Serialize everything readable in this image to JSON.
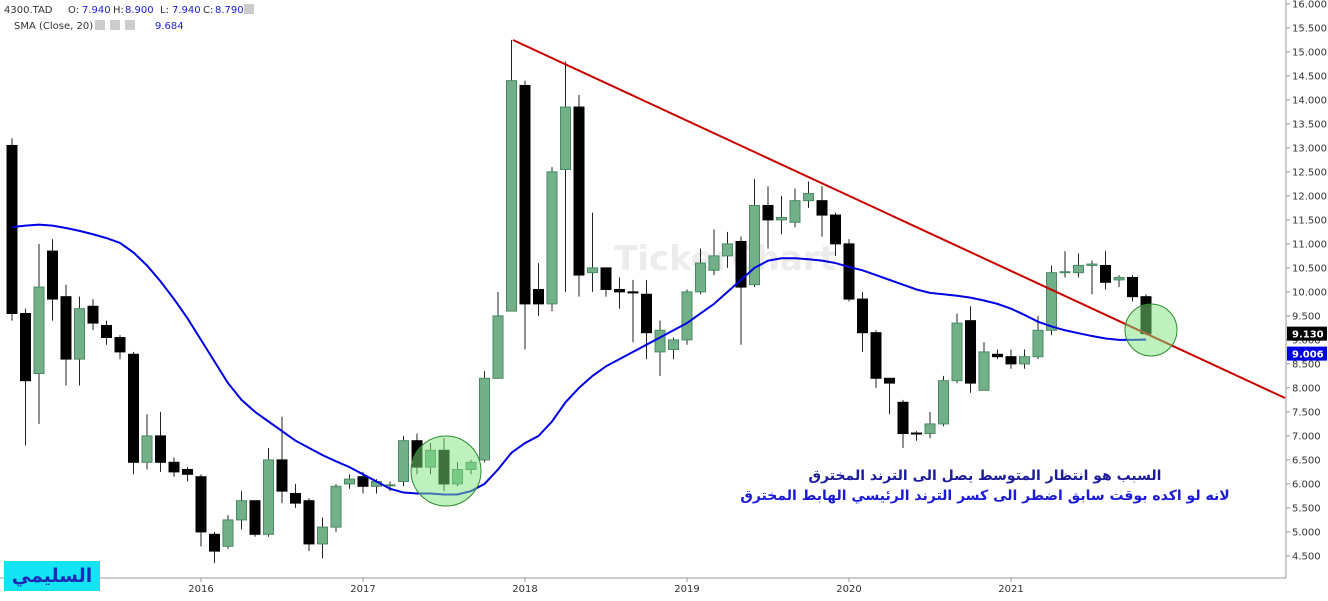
{
  "header": {
    "symbol": "4300.TAD",
    "ohlc": [
      [
        "O:",
        "7.940"
      ],
      [
        "H:",
        "8.900"
      ],
      [
        "L:",
        "7.940"
      ],
      [
        "C:",
        "8.790"
      ]
    ],
    "sma_name": "SMA (Close, 20)",
    "sma_value": "9.684"
  },
  "watermark": "TickerChart",
  "annotation": [
    "السبب هو انتظار المتوسط يصل الى الترند المخترق",
    "لانه لو اكده بوقت سابق اضطر الى كسر الترند الرئيسي الهابط المخترق"
  ],
  "signature": "السليمي",
  "chart_data": {
    "type": "candlestick",
    "categories": [
      null,
      null,
      null,
      null,
      null,
      null,
      null,
      null,
      null,
      null,
      null,
      null,
      null,
      null,
      "2016",
      null,
      null,
      null,
      null,
      null,
      null,
      null,
      null,
      null,
      null,
      null,
      "2017",
      null,
      null,
      null,
      null,
      null,
      null,
      null,
      null,
      null,
      null,
      null,
      "2018",
      null,
      null,
      null,
      null,
      null,
      null,
      null,
      null,
      null,
      null,
      null,
      "2019",
      null,
      null,
      null,
      null,
      null,
      null,
      null,
      null,
      null,
      null,
      null,
      "2020",
      null,
      null,
      null,
      null,
      null,
      null,
      null,
      null,
      null,
      null,
      null,
      "2021",
      null,
      null,
      null,
      null,
      null,
      null,
      null,
      null,
      null,
      null
    ],
    "ylim": [
      4.04,
      16.08
    ],
    "yticks": [
      {
        "value": 4.5,
        "label": "4.500"
      },
      {
        "value": 5,
        "label": "5.000"
      },
      {
        "value": 5.5,
        "label": "5.500"
      },
      {
        "value": 6,
        "label": "6.000"
      },
      {
        "value": 6.5,
        "label": "6.500"
      },
      {
        "value": 7,
        "label": "7.000"
      },
      {
        "value": 7.5,
        "label": "7.500"
      },
      {
        "value": 8,
        "label": "8.000"
      },
      {
        "value": 8.5,
        "label": "8.500"
      },
      {
        "value": 9,
        "label": "9.000"
      },
      {
        "value": 9.5,
        "label": "9.500"
      },
      {
        "value": 10,
        "label": "10.000"
      },
      {
        "value": 10.5,
        "label": "10.500"
      },
      {
        "value": 11,
        "label": "11.000"
      },
      {
        "value": 11.5,
        "label": "11.500"
      },
      {
        "value": 12,
        "label": "12.000"
      },
      {
        "value": 12.5,
        "label": "12.500"
      },
      {
        "value": 13,
        "label": "13.000"
      },
      {
        "value": 13.5,
        "label": "13.500"
      },
      {
        "value": 14,
        "label": "14.000"
      },
      {
        "value": 14.5,
        "label": "14.500"
      },
      {
        "value": 15,
        "label": "15.000"
      },
      {
        "value": 15.5,
        "label": "15.500"
      },
      {
        "value": 16,
        "label": "16.000"
      }
    ],
    "series": [
      {
        "name": "4300.TAD",
        "up_color": "#72b08a",
        "down_color": "#000000",
        "last_label": "9.130",
        "open": [
          13.05,
          9.55,
          8.3,
          10.85,
          9.9,
          8.6,
          9.7,
          9.3,
          9.05,
          8.7,
          6.45,
          7.0,
          6.45,
          6.3,
          6.15,
          4.95,
          4.7,
          5.25,
          5.65,
          4.95,
          6.5,
          5.8,
          5.65,
          4.75,
          5.1,
          6.0,
          6.15,
          5.95,
          5.97,
          6.05,
          6.9,
          6.35,
          6.7,
          6.0,
          6.3,
          6.5,
          8.2,
          9.6,
          14.3,
          10.05,
          9.75,
          12.55,
          13.85,
          10.4,
          10.5,
          10.05,
          10.0,
          9.95,
          8.75,
          8.8,
          9.0,
          10.0,
          10.45,
          10.75,
          11.05,
          10.15,
          11.8,
          11.5,
          11.45,
          11.9,
          11.9,
          11.6,
          11.0,
          9.85,
          9.15,
          8.2,
          7.7,
          7.06,
          7.05,
          7.25,
          8.15,
          9.4,
          7.95,
          8.7,
          8.65,
          8.5,
          8.65,
          9.2,
          10.4,
          10.4,
          10.55,
          10.55,
          10.25,
          10.3,
          9.9
        ],
        "high": [
          13.2,
          9.65,
          11.0,
          11.1,
          10.15,
          9.9,
          9.85,
          9.4,
          9.1,
          8.75,
          7.45,
          7.5,
          6.55,
          6.35,
          6.2,
          5.0,
          5.35,
          5.85,
          5.65,
          6.75,
          7.4,
          6.0,
          5.7,
          5.3,
          6.0,
          6.2,
          6.25,
          6.1,
          6.05,
          7.0,
          7.05,
          6.85,
          6.95,
          6.45,
          6.5,
          8.35,
          10.0,
          15.25,
          14.4,
          10.6,
          12.6,
          14.8,
          14.1,
          11.65,
          10.5,
          10.3,
          10.25,
          10.25,
          9.4,
          9.05,
          10.05,
          10.9,
          11.3,
          11.25,
          11.15,
          12.35,
          12.2,
          12.0,
          12.15,
          12.3,
          12.2,
          11.65,
          11.1,
          10.0,
          9.2,
          8.2,
          7.75,
          7.1,
          7.5,
          8.25,
          9.55,
          9.7,
          8.95,
          8.8,
          8.8,
          8.8,
          9.5,
          10.55,
          10.85,
          10.8,
          10.65,
          10.85,
          10.35,
          10.35,
          9.95
        ],
        "low": [
          9.4,
          6.8,
          7.25,
          9.4,
          8.05,
          8.05,
          9.2,
          8.9,
          8.6,
          6.2,
          6.3,
          6.25,
          6.15,
          6.05,
          4.7,
          4.35,
          4.65,
          5.05,
          4.9,
          4.9,
          5.6,
          5.5,
          4.6,
          4.45,
          5.0,
          5.9,
          5.8,
          5.8,
          5.85,
          5.95,
          6.2,
          6.2,
          5.85,
          5.95,
          6.2,
          6.45,
          8.2,
          9.6,
          8.8,
          9.5,
          9.6,
          10.0,
          9.9,
          10.0,
          9.9,
          9.65,
          8.95,
          8.6,
          8.25,
          8.6,
          8.9,
          9.95,
          10.35,
          10.5,
          8.9,
          10.1,
          10.9,
          11.2,
          11.35,
          11.75,
          11.15,
          10.75,
          9.8,
          8.75,
          8.0,
          7.45,
          6.75,
          6.9,
          6.95,
          7.2,
          8.1,
          7.9,
          7.95,
          8.6,
          8.4,
          8.4,
          8.6,
          9.1,
          10.3,
          10.3,
          9.95,
          10.05,
          10.1,
          9.8,
          9.1
        ],
        "close": [
          9.55,
          8.15,
          10.1,
          9.85,
          8.6,
          9.65,
          9.35,
          9.05,
          8.75,
          6.45,
          7.0,
          6.45,
          6.25,
          6.2,
          5.0,
          4.6,
          5.25,
          5.65,
          4.95,
          6.5,
          5.85,
          5.6,
          4.75,
          5.1,
          5.95,
          6.1,
          5.95,
          6.05,
          5.98,
          6.9,
          6.35,
          6.7,
          6.0,
          6.3,
          6.45,
          8.2,
          9.5,
          14.4,
          9.75,
          9.75,
          12.5,
          13.85,
          10.35,
          10.5,
          10.05,
          10.0,
          9.98,
          9.15,
          9.2,
          9.0,
          10.0,
          10.6,
          10.75,
          11.0,
          10.1,
          11.8,
          11.5,
          11.55,
          11.9,
          12.05,
          11.6,
          11.0,
          9.85,
          9.15,
          8.2,
          8.1,
          7.05,
          7.05,
          7.25,
          8.15,
          9.35,
          8.1,
          8.75,
          8.65,
          8.5,
          8.65,
          9.2,
          10.4,
          10.42,
          10.55,
          10.58,
          10.2,
          10.3,
          9.9,
          9.13
        ]
      },
      {
        "name": "SMA (Close, 20)",
        "type": "line",
        "color": "#0000e6",
        "last_label": "9.006",
        "values": [
          11.35,
          11.38,
          11.4,
          11.38,
          11.33,
          11.27,
          11.2,
          11.12,
          11.02,
          10.82,
          10.55,
          10.22,
          9.85,
          9.45,
          9.0,
          8.55,
          8.1,
          7.75,
          7.5,
          7.3,
          7.1,
          6.9,
          6.75,
          6.6,
          6.47,
          6.35,
          6.2,
          6.05,
          5.9,
          5.82,
          5.8,
          5.8,
          5.78,
          5.78,
          5.85,
          6.0,
          6.3,
          6.65,
          6.85,
          7.0,
          7.3,
          7.7,
          8.0,
          8.25,
          8.45,
          8.6,
          8.75,
          8.9,
          9.05,
          9.2,
          9.35,
          9.55,
          9.75,
          10.0,
          10.25,
          10.5,
          10.65,
          10.7,
          10.7,
          10.68,
          10.65,
          10.6,
          10.52,
          10.45,
          10.35,
          10.25,
          10.15,
          10.05,
          9.98,
          9.95,
          9.92,
          9.88,
          9.82,
          9.75,
          9.65,
          9.52,
          9.38,
          9.28,
          9.2,
          9.14,
          9.08,
          9.03,
          9.0,
          9.0,
          9.006
        ]
      }
    ]
  }
}
